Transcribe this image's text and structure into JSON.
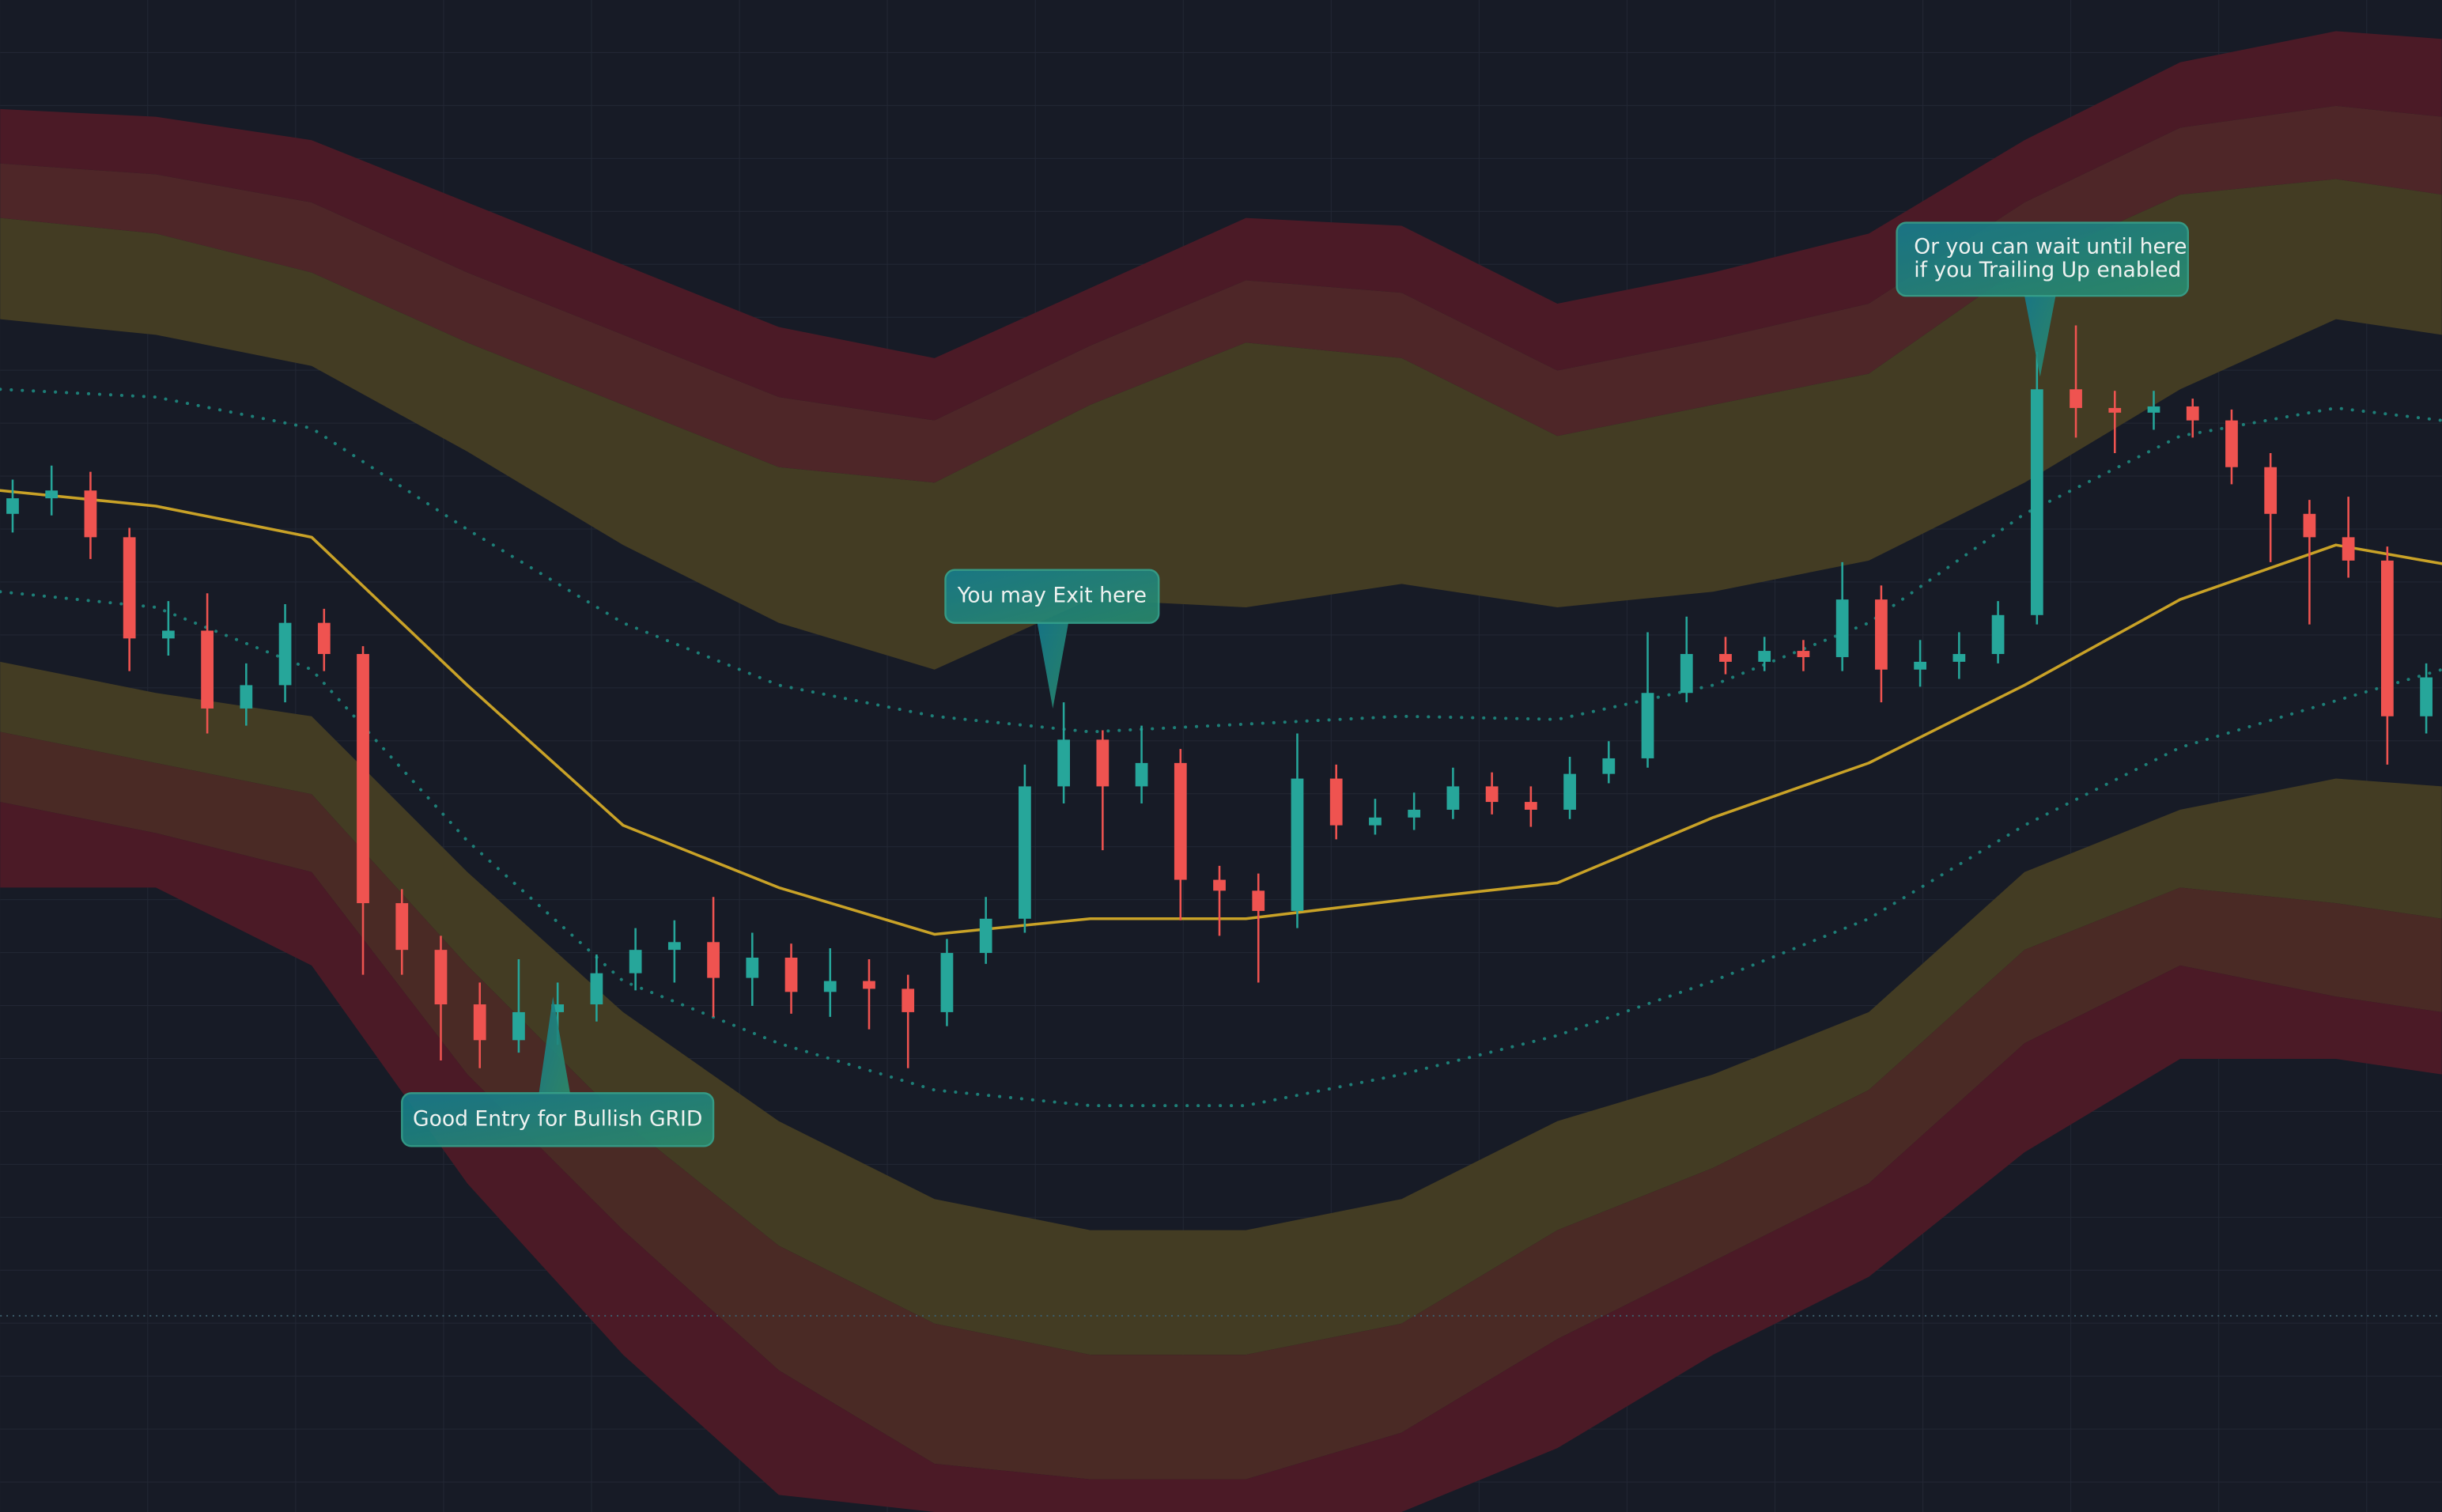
{
  "chart_data": {
    "type": "candlestick",
    "xlim": [
      0,
      1568
    ],
    "ylim": [
      0,
      971
    ],
    "x": [
      0,
      100,
      200,
      300,
      400,
      500,
      600,
      700,
      800,
      900,
      1000,
      1100,
      1200,
      1300,
      1400,
      1500,
      1568
    ],
    "upper_bands": {
      "colors": [
        "#4b1a26",
        "#4e2628",
        "#433c23"
      ],
      "lines": [
        [
          901,
          896,
          881,
          841,
          801,
          761,
          741,
          786,
          831,
          826,
          776,
          796,
          821,
          881,
          931,
          951,
          946
        ],
        [
          866,
          859,
          841,
          796,
          756,
          716,
          701,
          749,
          791,
          783,
          733,
          753,
          776,
          841,
          889,
          903,
          896
        ],
        [
          831,
          821,
          796,
          751,
          711,
          671,
          661,
          711,
          751,
          741,
          691,
          711,
          731,
          801,
          846,
          856,
          846
        ],
        [
          766,
          756,
          736,
          681,
          621,
          571,
          541,
          586,
          581,
          596,
          581,
          591,
          611,
          661,
          721,
          766,
          756
        ]
      ]
    },
    "lower_bands": {
      "colors": [
        "#433c23",
        "#4a2a25",
        "#4b1a26"
      ],
      "lines": [
        [
          546,
          526,
          511,
          411,
          321,
          251,
          201,
          181,
          181,
          201,
          251,
          281,
          321,
          411,
          451,
          471,
          466
        ],
        [
          501,
          481,
          461,
          351,
          251,
          171,
          121,
          101,
          101,
          121,
          181,
          221,
          271,
          361,
          401,
          391,
          381
        ],
        [
          456,
          436,
          411,
          281,
          181,
          91,
          31,
          21,
          21,
          51,
          111,
          161,
          211,
          301,
          351,
          331,
          321
        ],
        [
          401,
          401,
          351,
          211,
          101,
          11,
          0,
          0,
          0,
          0,
          41,
          101,
          151,
          231,
          291,
          291,
          281
        ]
      ]
    },
    "series": [
      {
        "color": "#c9a227",
        "style": "solid",
        "values": [
          656,
          646,
          626,
          531,
          441,
          401,
          371,
          381,
          381,
          393,
          404,
          446,
          481,
          531,
          586,
          621,
          609
        ]
      },
      {
        "color": "#1f8f86",
        "style": "dotted",
        "values": [
          721,
          716,
          696,
          631,
          571,
          531,
          511,
          501,
          506,
          511,
          509,
          531,
          571,
          641,
          691,
          709,
          701
        ]
      },
      {
        "color": "#1f8f86",
        "style": "dotted",
        "values": [
          591,
          581,
          541,
          431,
          341,
          301,
          271,
          261,
          261,
          281,
          306,
          341,
          381,
          441,
          491,
          521,
          541
        ]
      }
    ],
    "price_line": 126,
    "candles": {
      "up_color": "#26a69a",
      "down_color": "#ef5350",
      "ohlc": [
        [
          641,
          663,
          629,
          651
        ],
        [
          651,
          672,
          640,
          656
        ],
        [
          656,
          668,
          612,
          626
        ],
        [
          626,
          632,
          540,
          561
        ],
        [
          561,
          585,
          550,
          566
        ],
        [
          566,
          590,
          500,
          516
        ],
        [
          516,
          545,
          505,
          531
        ],
        [
          531,
          583,
          520,
          571
        ],
        [
          571,
          580,
          540,
          551
        ],
        [
          551,
          556,
          345,
          391
        ],
        [
          391,
          400,
          345,
          361
        ],
        [
          361,
          370,
          290,
          326
        ],
        [
          326,
          340,
          285,
          303
        ],
        [
          303,
          355,
          295,
          321
        ],
        [
          321,
          340,
          300,
          326
        ],
        [
          326,
          358,
          315,
          346
        ],
        [
          346,
          375,
          335,
          361
        ],
        [
          361,
          380,
          340,
          366
        ],
        [
          366,
          395,
          318,
          343
        ],
        [
          343,
          372,
          325,
          356
        ],
        [
          356,
          365,
          320,
          334
        ],
        [
          334,
          362,
          318,
          341
        ],
        [
          341,
          355,
          310,
          336
        ],
        [
          336,
          345,
          285,
          321
        ],
        [
          321,
          368,
          312,
          359
        ],
        [
          359,
          395,
          352,
          381
        ],
        [
          381,
          480,
          372,
          466
        ],
        [
          466,
          520,
          455,
          496
        ],
        [
          496,
          502,
          425,
          466
        ],
        [
          466,
          505,
          455,
          481
        ],
        [
          481,
          490,
          380,
          406
        ],
        [
          406,
          415,
          370,
          399
        ],
        [
          399,
          410,
          340,
          386
        ],
        [
          386,
          500,
          375,
          471
        ],
        [
          471,
          480,
          432,
          441
        ],
        [
          441,
          458,
          435,
          446
        ],
        [
          446,
          462,
          438,
          451
        ],
        [
          451,
          478,
          445,
          466
        ],
        [
          466,
          475,
          448,
          456
        ],
        [
          456,
          466,
          440,
          451
        ],
        [
          451,
          485,
          445,
          474
        ],
        [
          474,
          495,
          468,
          484
        ],
        [
          484,
          565,
          478,
          526
        ],
        [
          526,
          575,
          520,
          551
        ],
        [
          551,
          562,
          538,
          546
        ],
        [
          546,
          562,
          540,
          553
        ],
        [
          553,
          560,
          540,
          549
        ],
        [
          549,
          610,
          540,
          586
        ],
        [
          586,
          595,
          520,
          541
        ],
        [
          541,
          560,
          530,
          546
        ],
        [
          546,
          565,
          535,
          551
        ],
        [
          551,
          585,
          545,
          576
        ],
        [
          576,
          745,
          570,
          721
        ],
        [
          721,
          762,
          690,
          709
        ],
        [
          709,
          720,
          680,
          706
        ],
        [
          706,
          720,
          695,
          710
        ],
        [
          710,
          715,
          690,
          701
        ],
        [
          701,
          708,
          660,
          671
        ],
        [
          671,
          680,
          610,
          641
        ],
        [
          641,
          650,
          570,
          626
        ],
        [
          626,
          652,
          600,
          611
        ],
        [
          611,
          620,
          480,
          511
        ],
        [
          511,
          545,
          500,
          536
        ]
      ]
    },
    "annotations": [
      {
        "text": [
          "Good Entry for Bullish GRID"
        ]
      },
      {
        "text": [
          "You may Exit here"
        ]
      },
      {
        "text": [
          "Or you can wait until here",
          "if you Trailing Up enabled"
        ]
      }
    ]
  }
}
